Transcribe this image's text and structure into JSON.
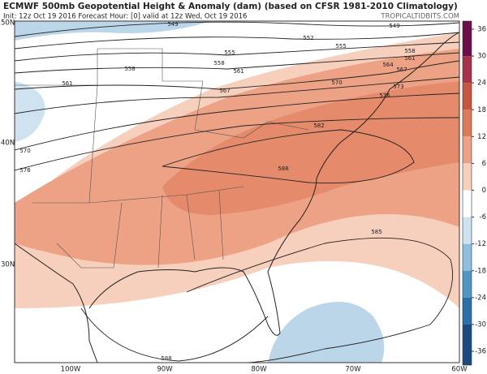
{
  "title": "ECMWF 500mb Geopotential Height & Anomaly (dam) (based on CFSR 1981-2010 Climatology)",
  "subtitle": "Init: 12z Oct 19 2016   Forecast Hour: [0]   valid at 12z Wed, Oct 19 2016",
  "source": "TROPICALTIDBITS.COM",
  "lat_labels": [
    "50N",
    "40N",
    "30N"
  ],
  "lon_labels": [
    "100W",
    "90W",
    "80W",
    "70W",
    "60W"
  ],
  "colorbar": {
    "ticks": [
      36,
      30,
      24,
      18,
      12,
      6,
      0,
      -6,
      -12,
      -18,
      -24,
      -30,
      -36
    ],
    "colors": [
      "#6b0f4a",
      "#a8324a",
      "#c8553f",
      "#dd7a5a",
      "#eda285",
      "#f7cfbd",
      "#ffffff",
      "#cfe2ef",
      "#8fbfdc",
      "#4f96c4",
      "#2a6fa7",
      "#1a4b80"
    ]
  },
  "contour_labels": [
    549,
    552,
    555,
    549,
    555,
    558,
    558,
    561,
    558,
    561,
    564,
    567,
    567,
    570,
    573,
    576,
    561,
    570,
    576,
    582,
    588,
    585,
    588
  ]
}
